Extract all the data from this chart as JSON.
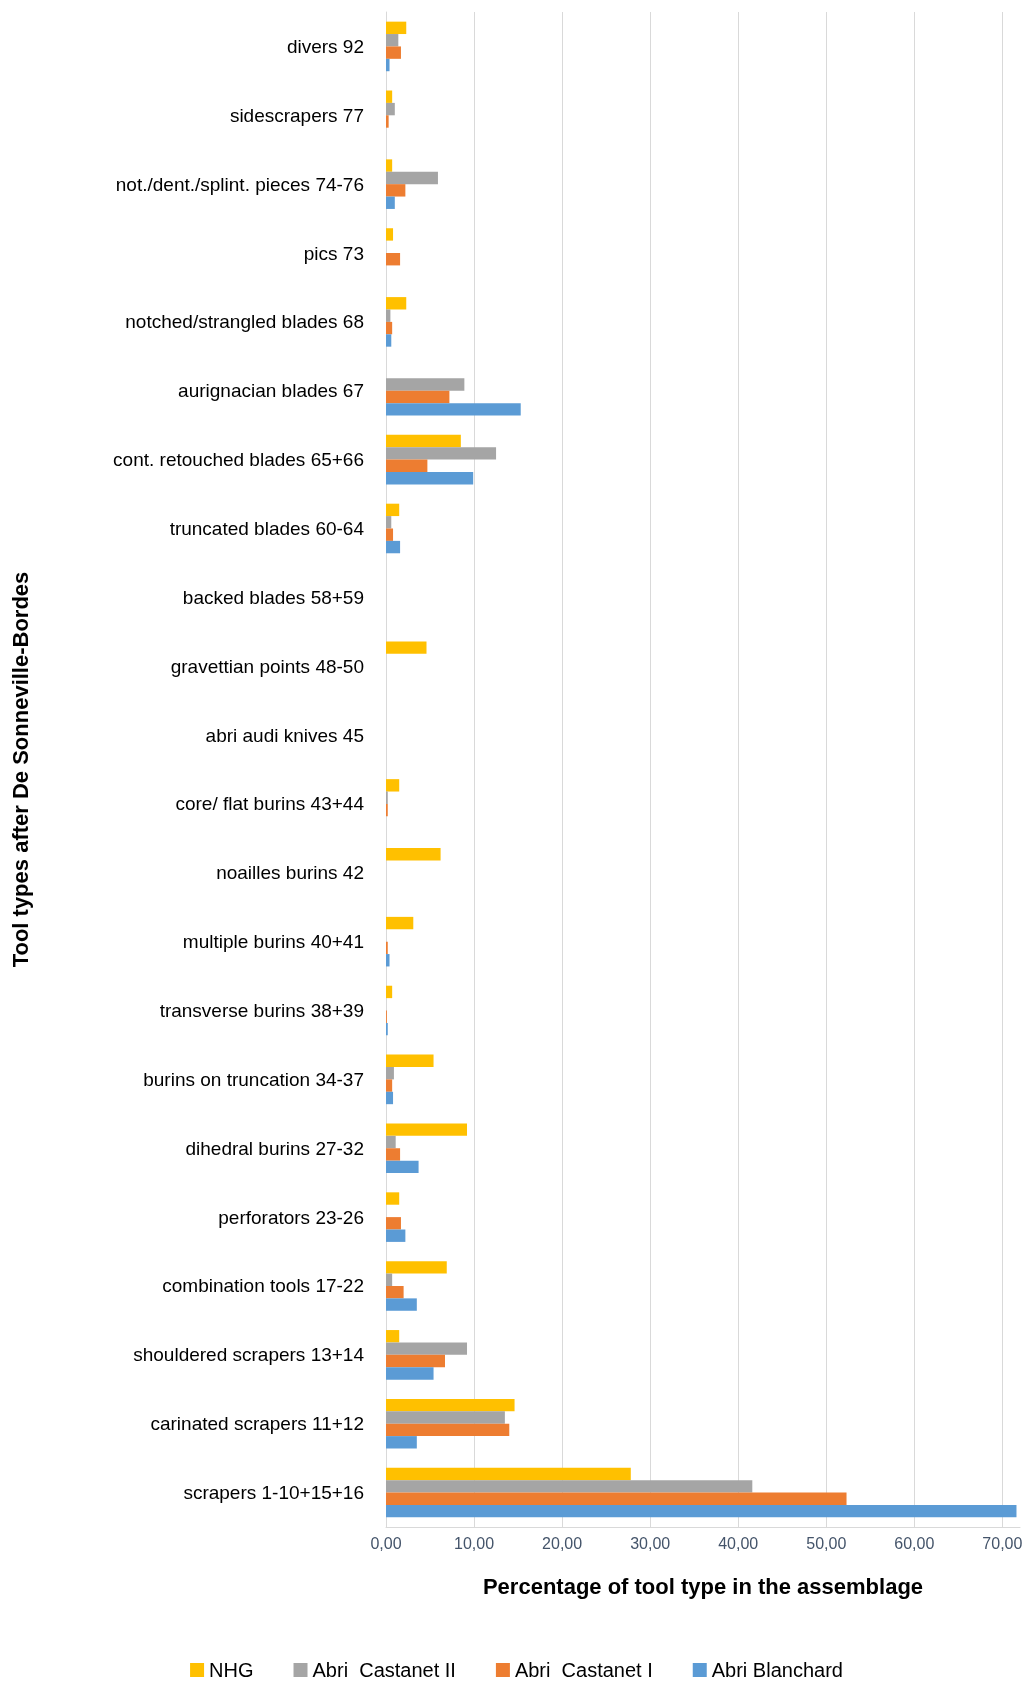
{
  "chart_data": {
    "type": "bar",
    "orientation": "horizontal",
    "xlabel": "Percentage of tool type in the assemblage",
    "ylabel": "Tool types after De Sonneville-Bordes",
    "categories": [
      "divers 92",
      "sidescrapers 77",
      "not./dent./splint. pieces 74-76",
      "pics 73",
      "notched/strangled blades 68",
      "aurignacian blades 67",
      "cont. retouched blades 65+66",
      "truncated blades 60-64",
      "backed blades 58+59",
      "gravettian points 48-50",
      "abri audi knives 45",
      "core/ flat burins 43+44",
      "noailles burins 42",
      "multiple burins 40+41",
      "transverse burins 38+39",
      "burins on truncation 34-37",
      "dihedral burins 27-32",
      "perforators 23-26",
      "combination tools 17-22",
      "shouldered scrapers 13+14",
      "carinated scrapers 11+12",
      "scrapers 1-10+15+16"
    ],
    "series": [
      {
        "name": "NHG",
        "color": "#ffc000",
        "values": [
          2.3,
          0.7,
          0.7,
          0.8,
          2.3,
          0,
          8.5,
          1.5,
          0,
          4.6,
          0,
          1.5,
          6.2,
          3.1,
          0.7,
          5.4,
          9.2,
          1.5,
          6.9,
          1.5,
          14.6,
          27.8
        ]
      },
      {
        "name": "Abri  Castanet II",
        "color": "#a5a5a5",
        "values": [
          1.4,
          1.0,
          5.9,
          0,
          0.5,
          8.9,
          12.5,
          0.6,
          0,
          0,
          0,
          0.2,
          0,
          0,
          0,
          0.9,
          1.1,
          0,
          0.7,
          9.2,
          13.5,
          41.6
        ]
      },
      {
        "name": "Abri  Castanet I",
        "color": "#ed7d31",
        "values": [
          1.7,
          0.3,
          2.2,
          1.6,
          0.7,
          7.2,
          4.7,
          0.8,
          0,
          0,
          0,
          0.2,
          0,
          0.2,
          0.1,
          0.7,
          1.6,
          1.7,
          2.0,
          6.7,
          14.0,
          52.3
        ]
      },
      {
        "name": "Abri Blanchard",
        "color": "#5b9bd5",
        "values": [
          0.4,
          0,
          1.0,
          0,
          0.6,
          15.3,
          9.9,
          1.6,
          0,
          0,
          0,
          0,
          0,
          0.4,
          0.2,
          0.8,
          3.7,
          2.2,
          3.5,
          5.4,
          3.5,
          71.6
        ]
      }
    ],
    "xlim": [
      0,
      72
    ],
    "xticks": [
      {
        "value": 0,
        "label": "0,00"
      },
      {
        "value": 10,
        "label": "10,00"
      },
      {
        "value": 20,
        "label": "20,00"
      },
      {
        "value": 30,
        "label": "30,00"
      },
      {
        "value": 40,
        "label": "40,00"
      },
      {
        "value": 50,
        "label": "50,00"
      },
      {
        "value": 60,
        "label": "60,00"
      },
      {
        "value": 70,
        "label": "70,00"
      }
    ],
    "grid": "x",
    "legend": "bottom"
  }
}
